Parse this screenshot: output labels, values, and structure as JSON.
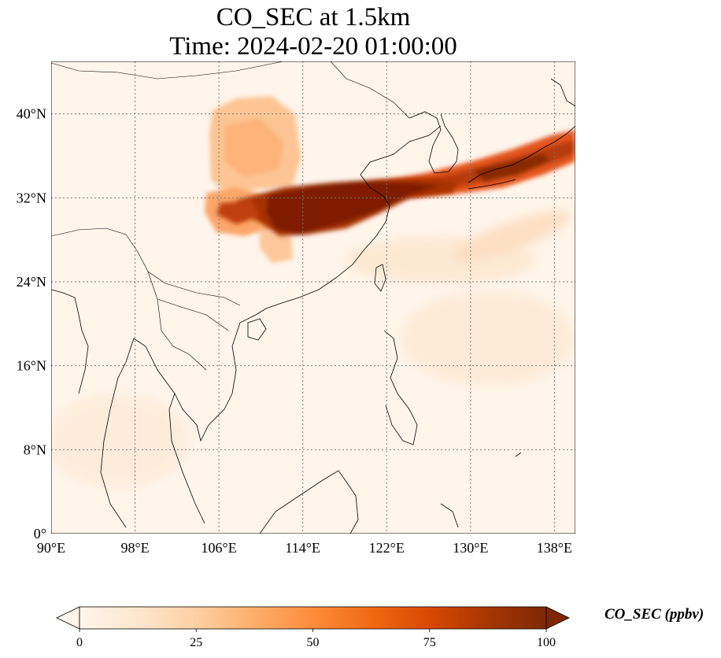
{
  "title": {
    "line1": "CO_SEC at 1.5km",
    "line2": "Time: 2024-02-20 01:00:00"
  },
  "map": {
    "lon_range": [
      90,
      140
    ],
    "lat_range": [
      0,
      45
    ],
    "gridlines": true,
    "lon_ticks": [
      {
        "value": 90,
        "label": "90°E"
      },
      {
        "value": 98,
        "label": "98°E"
      },
      {
        "value": 106,
        "label": "106°E"
      },
      {
        "value": 114,
        "label": "114°E"
      },
      {
        "value": 122,
        "label": "122°E"
      },
      {
        "value": 130,
        "label": "130°E"
      },
      {
        "value": 138,
        "label": "138°E"
      }
    ],
    "lat_ticks": [
      {
        "value": 0,
        "label": "0°"
      },
      {
        "value": 8,
        "label": "8°N"
      },
      {
        "value": 16,
        "label": "16°N"
      },
      {
        "value": 24,
        "label": "24°N"
      },
      {
        "value": 32,
        "label": "32°N"
      },
      {
        "value": 40,
        "label": "40°N"
      }
    ],
    "background_color": "#fff5eb",
    "coastline_color": "#000000",
    "grid_color": "#777777"
  },
  "colorbar": {
    "label": "CO_SEC (ppbv)",
    "min": 0,
    "max": 100,
    "extend": "both",
    "ticks": [
      {
        "value": 0,
        "label": "0"
      },
      {
        "value": 25,
        "label": "25"
      },
      {
        "value": 50,
        "label": "50"
      },
      {
        "value": 75,
        "label": "75"
      },
      {
        "value": 100,
        "label": "100"
      }
    ],
    "colors": [
      "#fff5eb",
      "#fee6ce",
      "#fdd0a2",
      "#fdae6b",
      "#fd8d3c",
      "#f16913",
      "#d94801",
      "#a63603",
      "#7f2704"
    ]
  },
  "plumes": [
    {
      "name": "main-band",
      "value": 100
    },
    {
      "name": "north-haze",
      "value": 35
    },
    {
      "name": "east-band",
      "value": 85
    },
    {
      "name": "pacific-haze",
      "value": 12
    }
  ]
}
